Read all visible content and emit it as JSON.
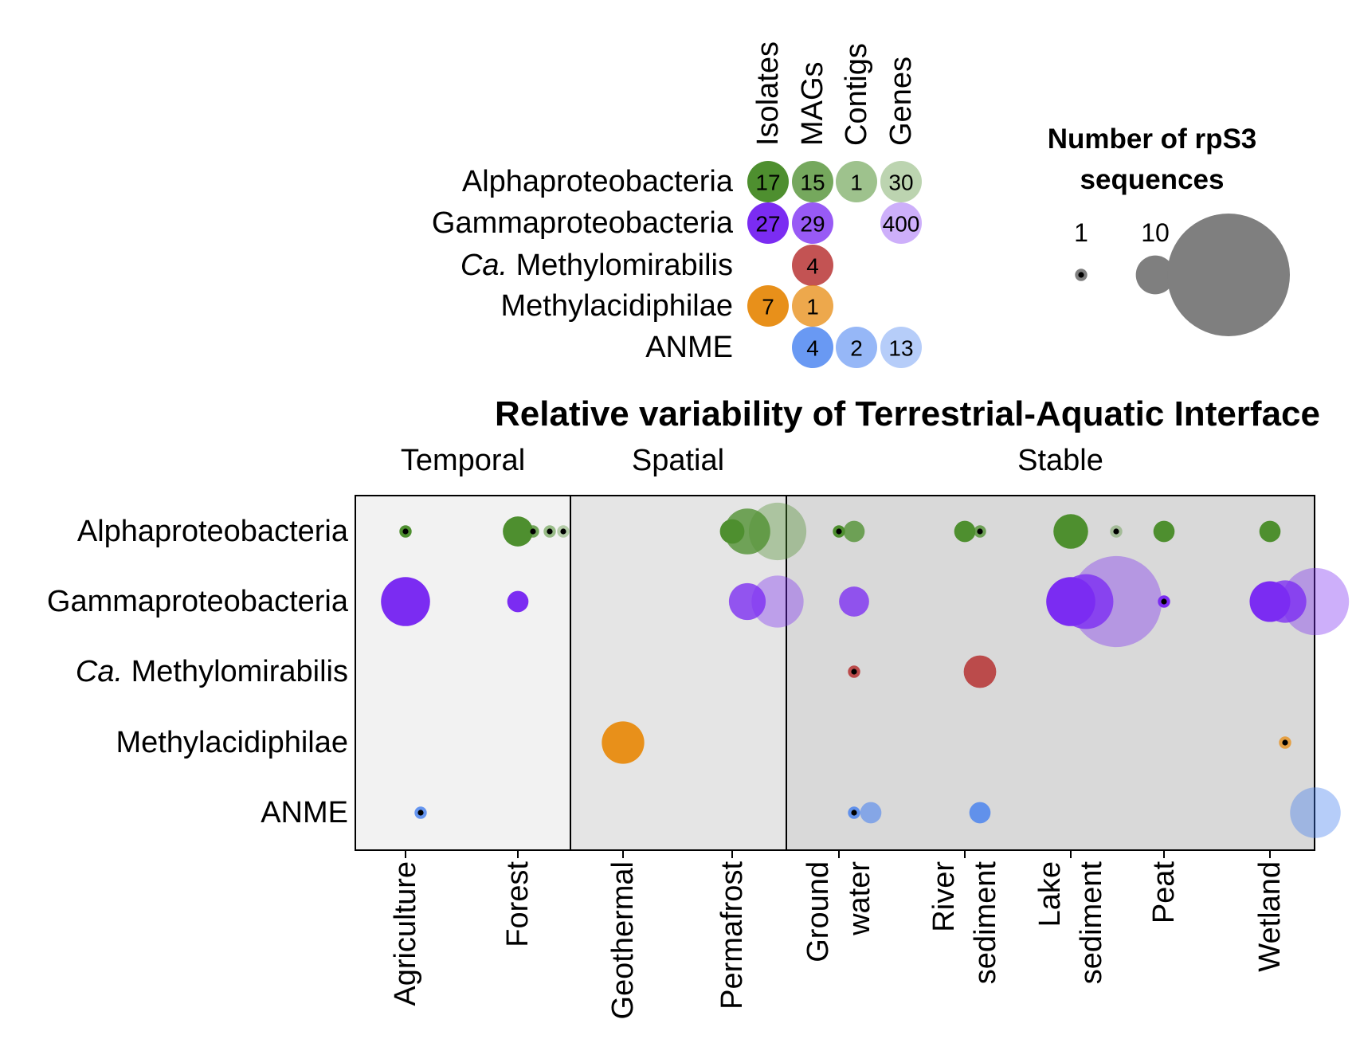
{
  "chart_data": [
    {
      "type": "scatter",
      "kind": "bubble-matrix",
      "columns": [
        "Isolates",
        "MAGs",
        "Contigs",
        "Genes"
      ],
      "rows": [
        {
          "label_main": "Alphaproteobacteria",
          "label_italic": "",
          "color": "#4e8f2f"
        },
        {
          "label_main": "Gammaproteobacteria",
          "label_italic": "",
          "color": "#7b2cf2"
        },
        {
          "label_main": " Methylomirabilis",
          "label_italic": "Ca.",
          "color": "#b22222"
        },
        {
          "label_main": "Methylacidiphilae",
          "label_italic": "",
          "color": "#e8901a"
        },
        {
          "label_main": "ANME",
          "label_italic": "",
          "color": "#3f7cf0"
        }
      ],
      "cells": [
        {
          "row": 0,
          "col": 0,
          "value": 17
        },
        {
          "row": 0,
          "col": 1,
          "value": 15
        },
        {
          "row": 0,
          "col": 2,
          "value": 1
        },
        {
          "row": 0,
          "col": 3,
          "value": 30
        },
        {
          "row": 1,
          "col": 0,
          "value": 27
        },
        {
          "row": 1,
          "col": 1,
          "value": 29
        },
        {
          "row": 1,
          "col": 3,
          "value": 400
        },
        {
          "row": 2,
          "col": 1,
          "value": 4
        },
        {
          "row": 3,
          "col": 0,
          "value": 7
        },
        {
          "row": 3,
          "col": 1,
          "value": 1
        },
        {
          "row": 4,
          "col": 1,
          "value": 4
        },
        {
          "row": 4,
          "col": 2,
          "value": 2
        },
        {
          "row": 4,
          "col": 3,
          "value": 13
        }
      ]
    },
    {
      "type": "scatter",
      "kind": "bubble",
      "title": "Relative variability of Terrestrial-Aquatic Interface",
      "legend": {
        "title_lines": [
          "Number of rpS3",
          "sequences"
        ],
        "sizes": [
          1,
          10,
          100
        ],
        "position": "top-right"
      },
      "groups": [
        {
          "label": "Temporal",
          "fill": "#f2f2f2"
        },
        {
          "label": "Spatial",
          "fill": "#e5e5e5"
        },
        {
          "label": "Stable",
          "fill": "#d9d9d9"
        }
      ],
      "categories": [
        {
          "lines": [
            "Agriculture"
          ]
        },
        {
          "lines": [
            "Forest"
          ]
        },
        {
          "lines": [
            "Geothermal"
          ]
        },
        {
          "lines": [
            "Permafrost"
          ]
        },
        {
          "lines": [
            "Ground",
            "water"
          ]
        },
        {
          "lines": [
            "River",
            "sediment"
          ]
        },
        {
          "lines": [
            "Lake",
            "sediment"
          ]
        },
        {
          "lines": [
            "Peat"
          ]
        },
        {
          "lines": [
            "Wetland"
          ]
        }
      ],
      "rows": [
        {
          "label_main": "Alphaproteobacteria",
          "label_italic": ""
        },
        {
          "label_main": "Gammaproteobacteria",
          "label_italic": ""
        },
        {
          "label_main": " Methylomirabilis",
          "label_italic": "Ca."
        },
        {
          "label_main": "Methylacidiphilae",
          "label_italic": ""
        },
        {
          "label_main": "ANME",
          "label_italic": ""
        }
      ],
      "points": [
        {
          "row": 0,
          "cat": 0,
          "type": 0,
          "n": 1
        },
        {
          "row": 0,
          "cat": 1,
          "type": 0,
          "n": 6
        },
        {
          "row": 0,
          "cat": 1,
          "type": 1,
          "n": 1
        },
        {
          "row": 0,
          "cat": 1,
          "type": 2,
          "n": 1
        },
        {
          "row": 0,
          "cat": 1,
          "type": 3,
          "n": 1
        },
        {
          "row": 0,
          "cat": 3,
          "type": 0,
          "n": 4
        },
        {
          "row": 0,
          "cat": 3,
          "type": 1,
          "n": 14
        },
        {
          "row": 0,
          "cat": 3,
          "type": 3,
          "n": 22
        },
        {
          "row": 0,
          "cat": 4,
          "type": 0,
          "n": 1
        },
        {
          "row": 0,
          "cat": 4,
          "type": 1,
          "n": 3
        },
        {
          "row": 0,
          "cat": 5,
          "type": 0,
          "n": 3
        },
        {
          "row": 0,
          "cat": 5,
          "type": 1,
          "n": 1
        },
        {
          "row": 0,
          "cat": 6,
          "type": 0,
          "n": 8
        },
        {
          "row": 0,
          "cat": 6,
          "type": 3,
          "n": 1
        },
        {
          "row": 0,
          "cat": 7,
          "type": 0,
          "n": 3
        },
        {
          "row": 0,
          "cat": 8,
          "type": 0,
          "n": 3
        },
        {
          "row": 1,
          "cat": 0,
          "type": 0,
          "n": 16
        },
        {
          "row": 1,
          "cat": 1,
          "type": 0,
          "n": 3
        },
        {
          "row": 1,
          "cat": 3,
          "type": 1,
          "n": 9
        },
        {
          "row": 1,
          "cat": 3,
          "type": 3,
          "n": 18
        },
        {
          "row": 1,
          "cat": 4,
          "type": 1,
          "n": 6
        },
        {
          "row": 1,
          "cat": 6,
          "type": 0,
          "n": 16
        },
        {
          "row": 1,
          "cat": 6,
          "type": 1,
          "n": 20
        },
        {
          "row": 1,
          "cat": 6,
          "type": 3,
          "n": 55
        },
        {
          "row": 1,
          "cat": 7,
          "type": 0,
          "n": 1
        },
        {
          "row": 1,
          "cat": 8,
          "type": 0,
          "n": 11
        },
        {
          "row": 1,
          "cat": 8,
          "type": 1,
          "n": 12
        },
        {
          "row": 1,
          "cat": 8,
          "type": 3,
          "n": 30
        },
        {
          "row": 2,
          "cat": 4,
          "type": 1,
          "n": 1
        },
        {
          "row": 2,
          "cat": 5,
          "type": 1,
          "n": 7
        },
        {
          "row": 3,
          "cat": 2,
          "type": 0,
          "n": 12
        },
        {
          "row": 3,
          "cat": 8,
          "type": 1,
          "n": 1
        },
        {
          "row": 4,
          "cat": 0,
          "type": 1,
          "n": 1
        },
        {
          "row": 4,
          "cat": 4,
          "type": 1,
          "n": 1
        },
        {
          "row": 4,
          "cat": 4,
          "type": 2,
          "n": 3
        },
        {
          "row": 4,
          "cat": 5,
          "type": 1,
          "n": 3
        },
        {
          "row": 4,
          "cat": 8,
          "type": 3,
          "n": 17
        }
      ]
    }
  ]
}
